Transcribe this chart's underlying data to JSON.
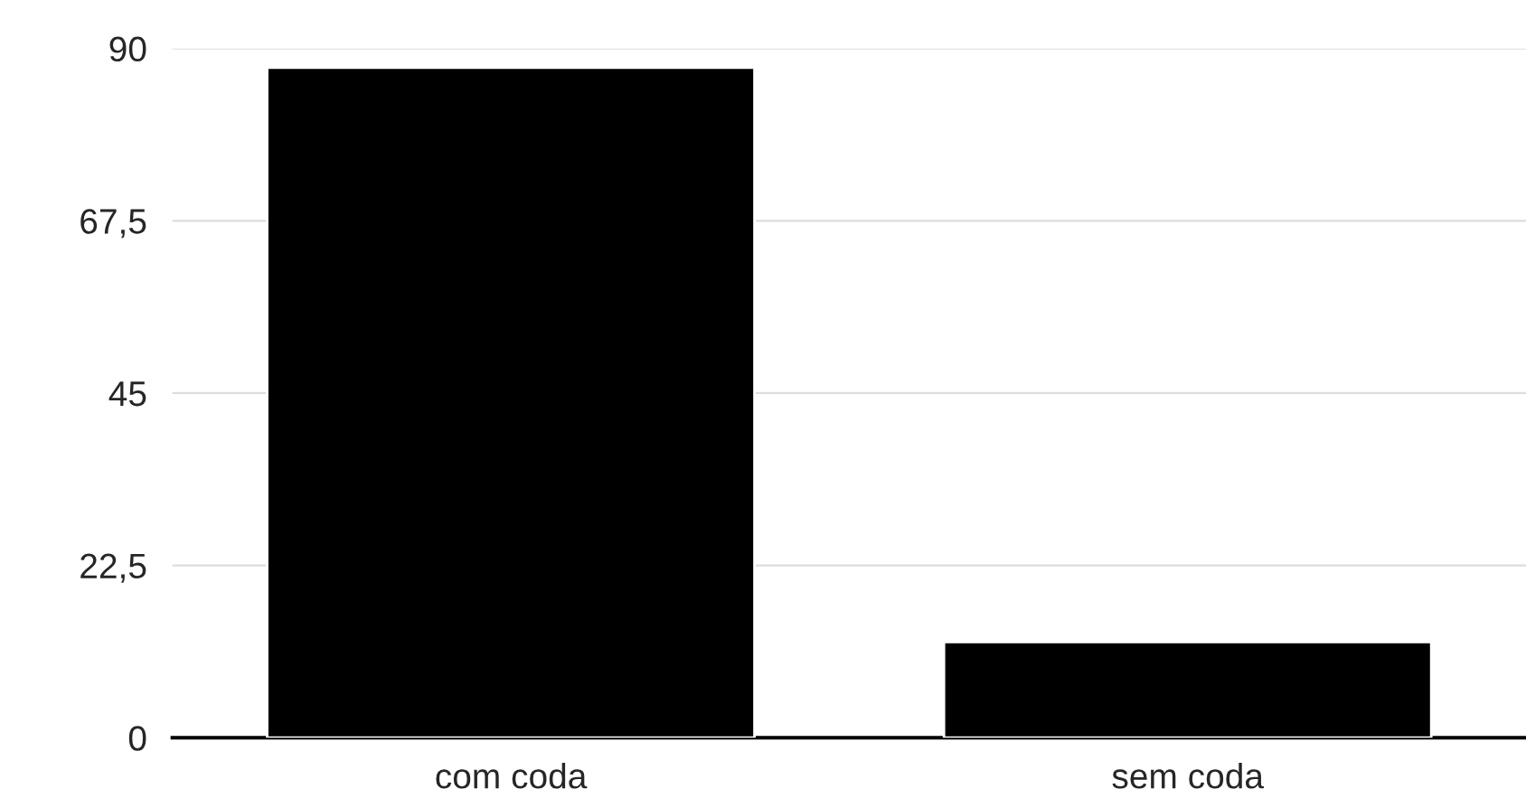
{
  "chart_data": {
    "type": "bar",
    "categories": [
      "com coda",
      "sem coda"
    ],
    "values": [
      87.5,
      12.5
    ],
    "color": "#000000",
    "ylim": [
      0,
      90
    ],
    "yticks": [
      0,
      {
        "value": 22.5,
        "label": "22,5"
      },
      45,
      {
        "value": 67.5,
        "label": "67,5"
      },
      90
    ],
    "grid": "y"
  }
}
